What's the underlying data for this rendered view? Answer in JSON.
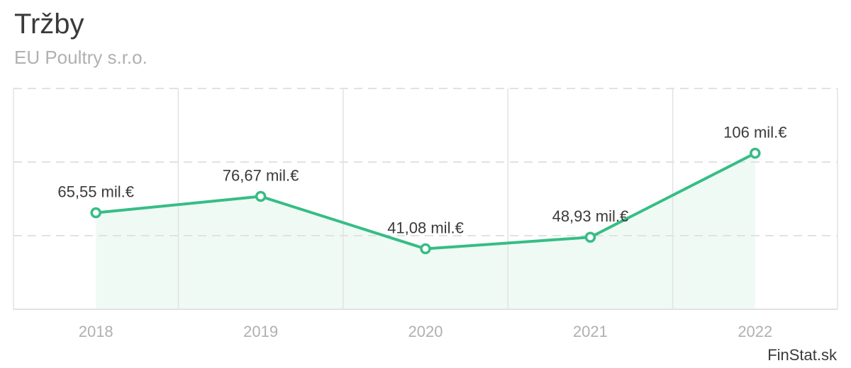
{
  "header": {
    "title": "Tržby",
    "subtitle": "EU Poultry s.r.o."
  },
  "credit": "FinStat.sk",
  "colors": {
    "line": "#36bd85",
    "area": "#effaf5",
    "grid": "#e2e2e2"
  },
  "chart_data": {
    "type": "line",
    "title": "Tržby",
    "subtitle": "EU Poultry s.r.o.",
    "categories": [
      "2018",
      "2019",
      "2020",
      "2021",
      "2022"
    ],
    "values": [
      65.55,
      76.67,
      41.08,
      48.93,
      106
    ],
    "data_labels": [
      "65,55 mil.€",
      "76,67 mil.€",
      "41,08 mil.€",
      "48,93 mil.€",
      "106 mil.€"
    ],
    "unit": "mil.€",
    "ylim": [
      0,
      150
    ],
    "yticks": [
      0,
      50,
      100,
      150
    ],
    "grid": true,
    "legend": "none"
  }
}
